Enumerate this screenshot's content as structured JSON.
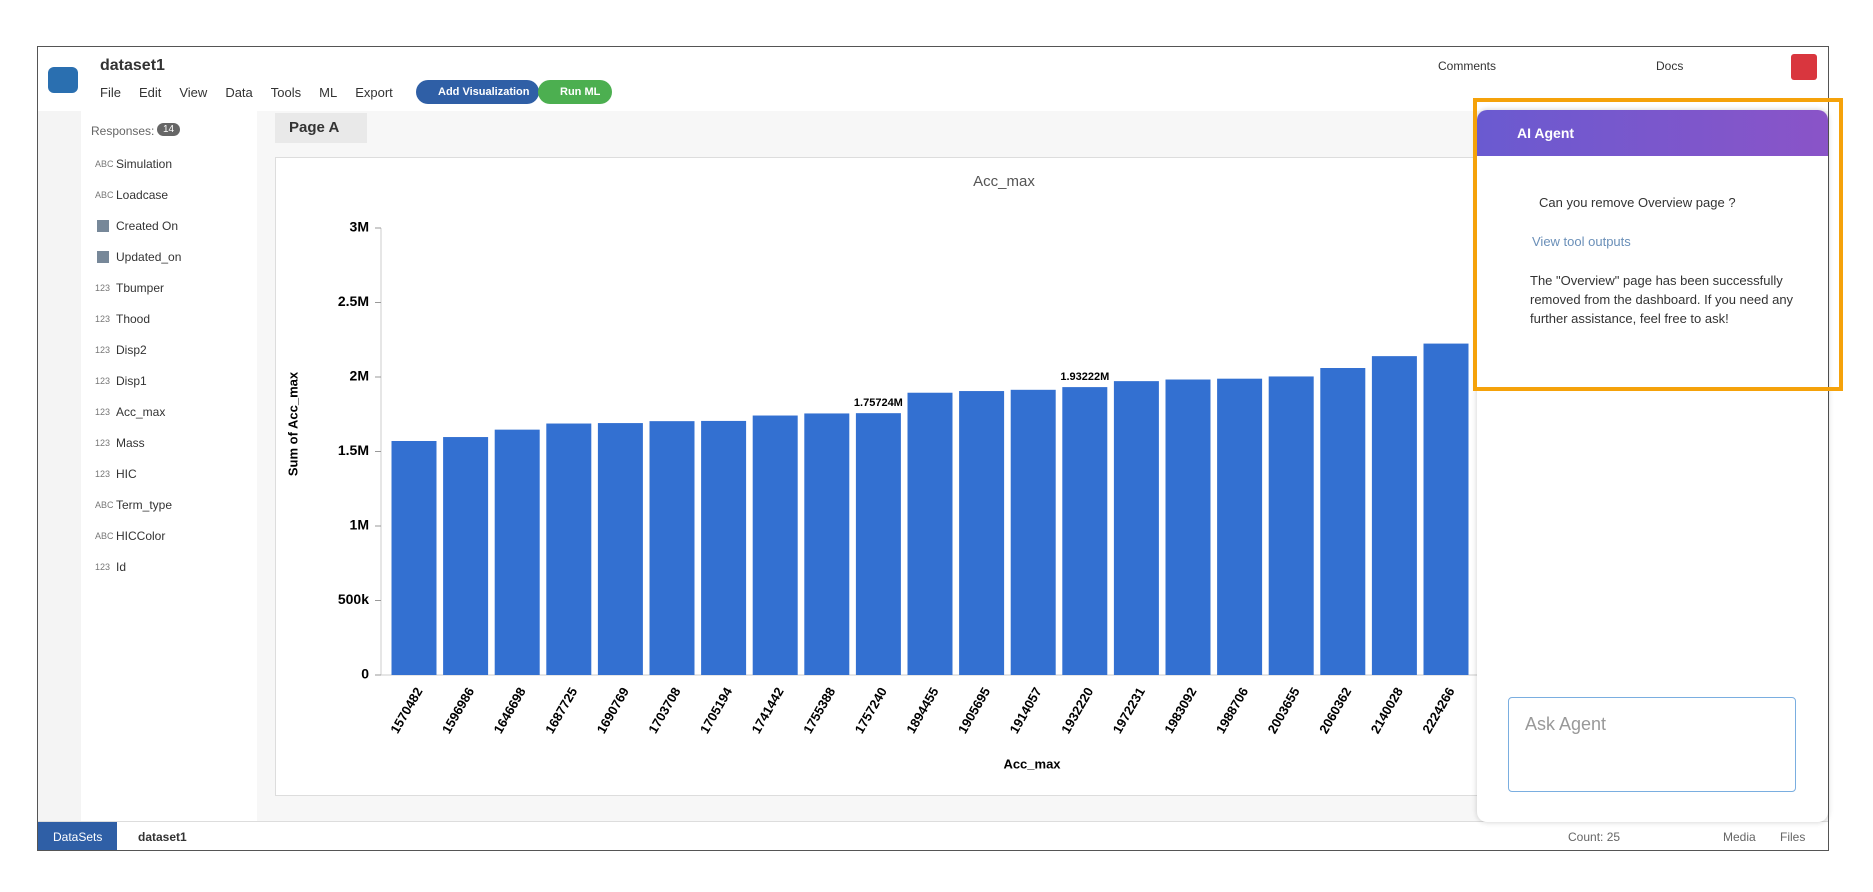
{
  "app": {
    "title": "dataset1",
    "menu": [
      "File",
      "Edit",
      "View",
      "Data",
      "Tools",
      "ML",
      "Export"
    ],
    "buttons": [
      "Add Visualization",
      "Run ML"
    ],
    "toolbar": [
      "Comments",
      "Docs"
    ]
  },
  "sidebar": {
    "label": "Responses:",
    "count": "14",
    "fields": [
      {
        "type": "ABC",
        "name": "Simulation"
      },
      {
        "type": "ABC",
        "name": "Loadcase"
      },
      {
        "name": "Created On"
      },
      {
        "name": "Updated_on"
      },
      {
        "type": "123",
        "name": "Tbumper"
      },
      {
        "type": "123",
        "name": "Thood"
      },
      {
        "type": "123",
        "name": "Disp2"
      },
      {
        "type": "123",
        "name": "Disp1"
      },
      {
        "type": "123",
        "name": "Acc_max"
      },
      {
        "type": "123",
        "name": "Mass"
      },
      {
        "type": "123",
        "name": "HIC"
      },
      {
        "type": "ABC",
        "name": "Term_type"
      },
      {
        "type": "ABC",
        "name": "HICColor"
      },
      {
        "type": "123",
        "name": "Id"
      }
    ]
  },
  "page_tab": "Page A",
  "chart_data": {
    "type": "bar",
    "title": "Acc_max",
    "x_label": "Acc_max",
    "y_label": "Sum of Acc_max",
    "color": "#3370d1",
    "categories": [
      "1570482",
      "1596986",
      "1646698",
      "1687725",
      "1690769",
      "1703708",
      "1705194",
      "1741442",
      "1755388",
      "1757240",
      "1894455",
      "1905695",
      "1914057",
      "1932220",
      "1972231",
      "1983092",
      "1988706",
      "2003655",
      "2060362",
      "2140028",
      "2224266"
    ],
    "values": [
      1570482,
      1596986,
      1646698,
      1687725,
      1690769,
      1703708,
      1705194,
      1741442,
      1755388,
      1757240,
      1894455,
      1905695,
      1914057,
      1932220,
      1972231,
      1983092,
      1988706,
      2003655,
      2060362,
      2140028,
      2224266
    ],
    "value_labels": [
      null,
      null,
      null,
      null,
      null,
      null,
      null,
      null,
      null,
      "1.75724M",
      null,
      null,
      null,
      "1.93222M",
      null,
      null,
      null,
      null,
      null,
      null,
      null
    ],
    "ylim": [
      0,
      3000000
    ],
    "yticks": [
      0,
      {
        "value": 500000,
        "label": "500k"
      },
      {
        "value": 1000000,
        "label": "1M"
      },
      {
        "value": 1500000,
        "label": "1.5M"
      },
      {
        "value": 2000000,
        "label": "2M"
      },
      {
        "value": 2500000,
        "label": "2.5M"
      },
      {
        "value": 3000000,
        "label": "3M"
      }
    ],
    "grid": false
  },
  "agent": {
    "title": "AI Agent",
    "user_message": "Can you remove Overview page ?",
    "tool_outputs": "View tool outputs",
    "reply": "The \"Overview\" page has been successfully removed from the dashboard. If you need any further assistance, feel free to ask!",
    "input_placeholder": "Ask Agent"
  },
  "footer": {
    "tabs": [
      "DataSets",
      "dataset1"
    ],
    "count": "Count: 25",
    "links": [
      "Media",
      "Files"
    ]
  }
}
